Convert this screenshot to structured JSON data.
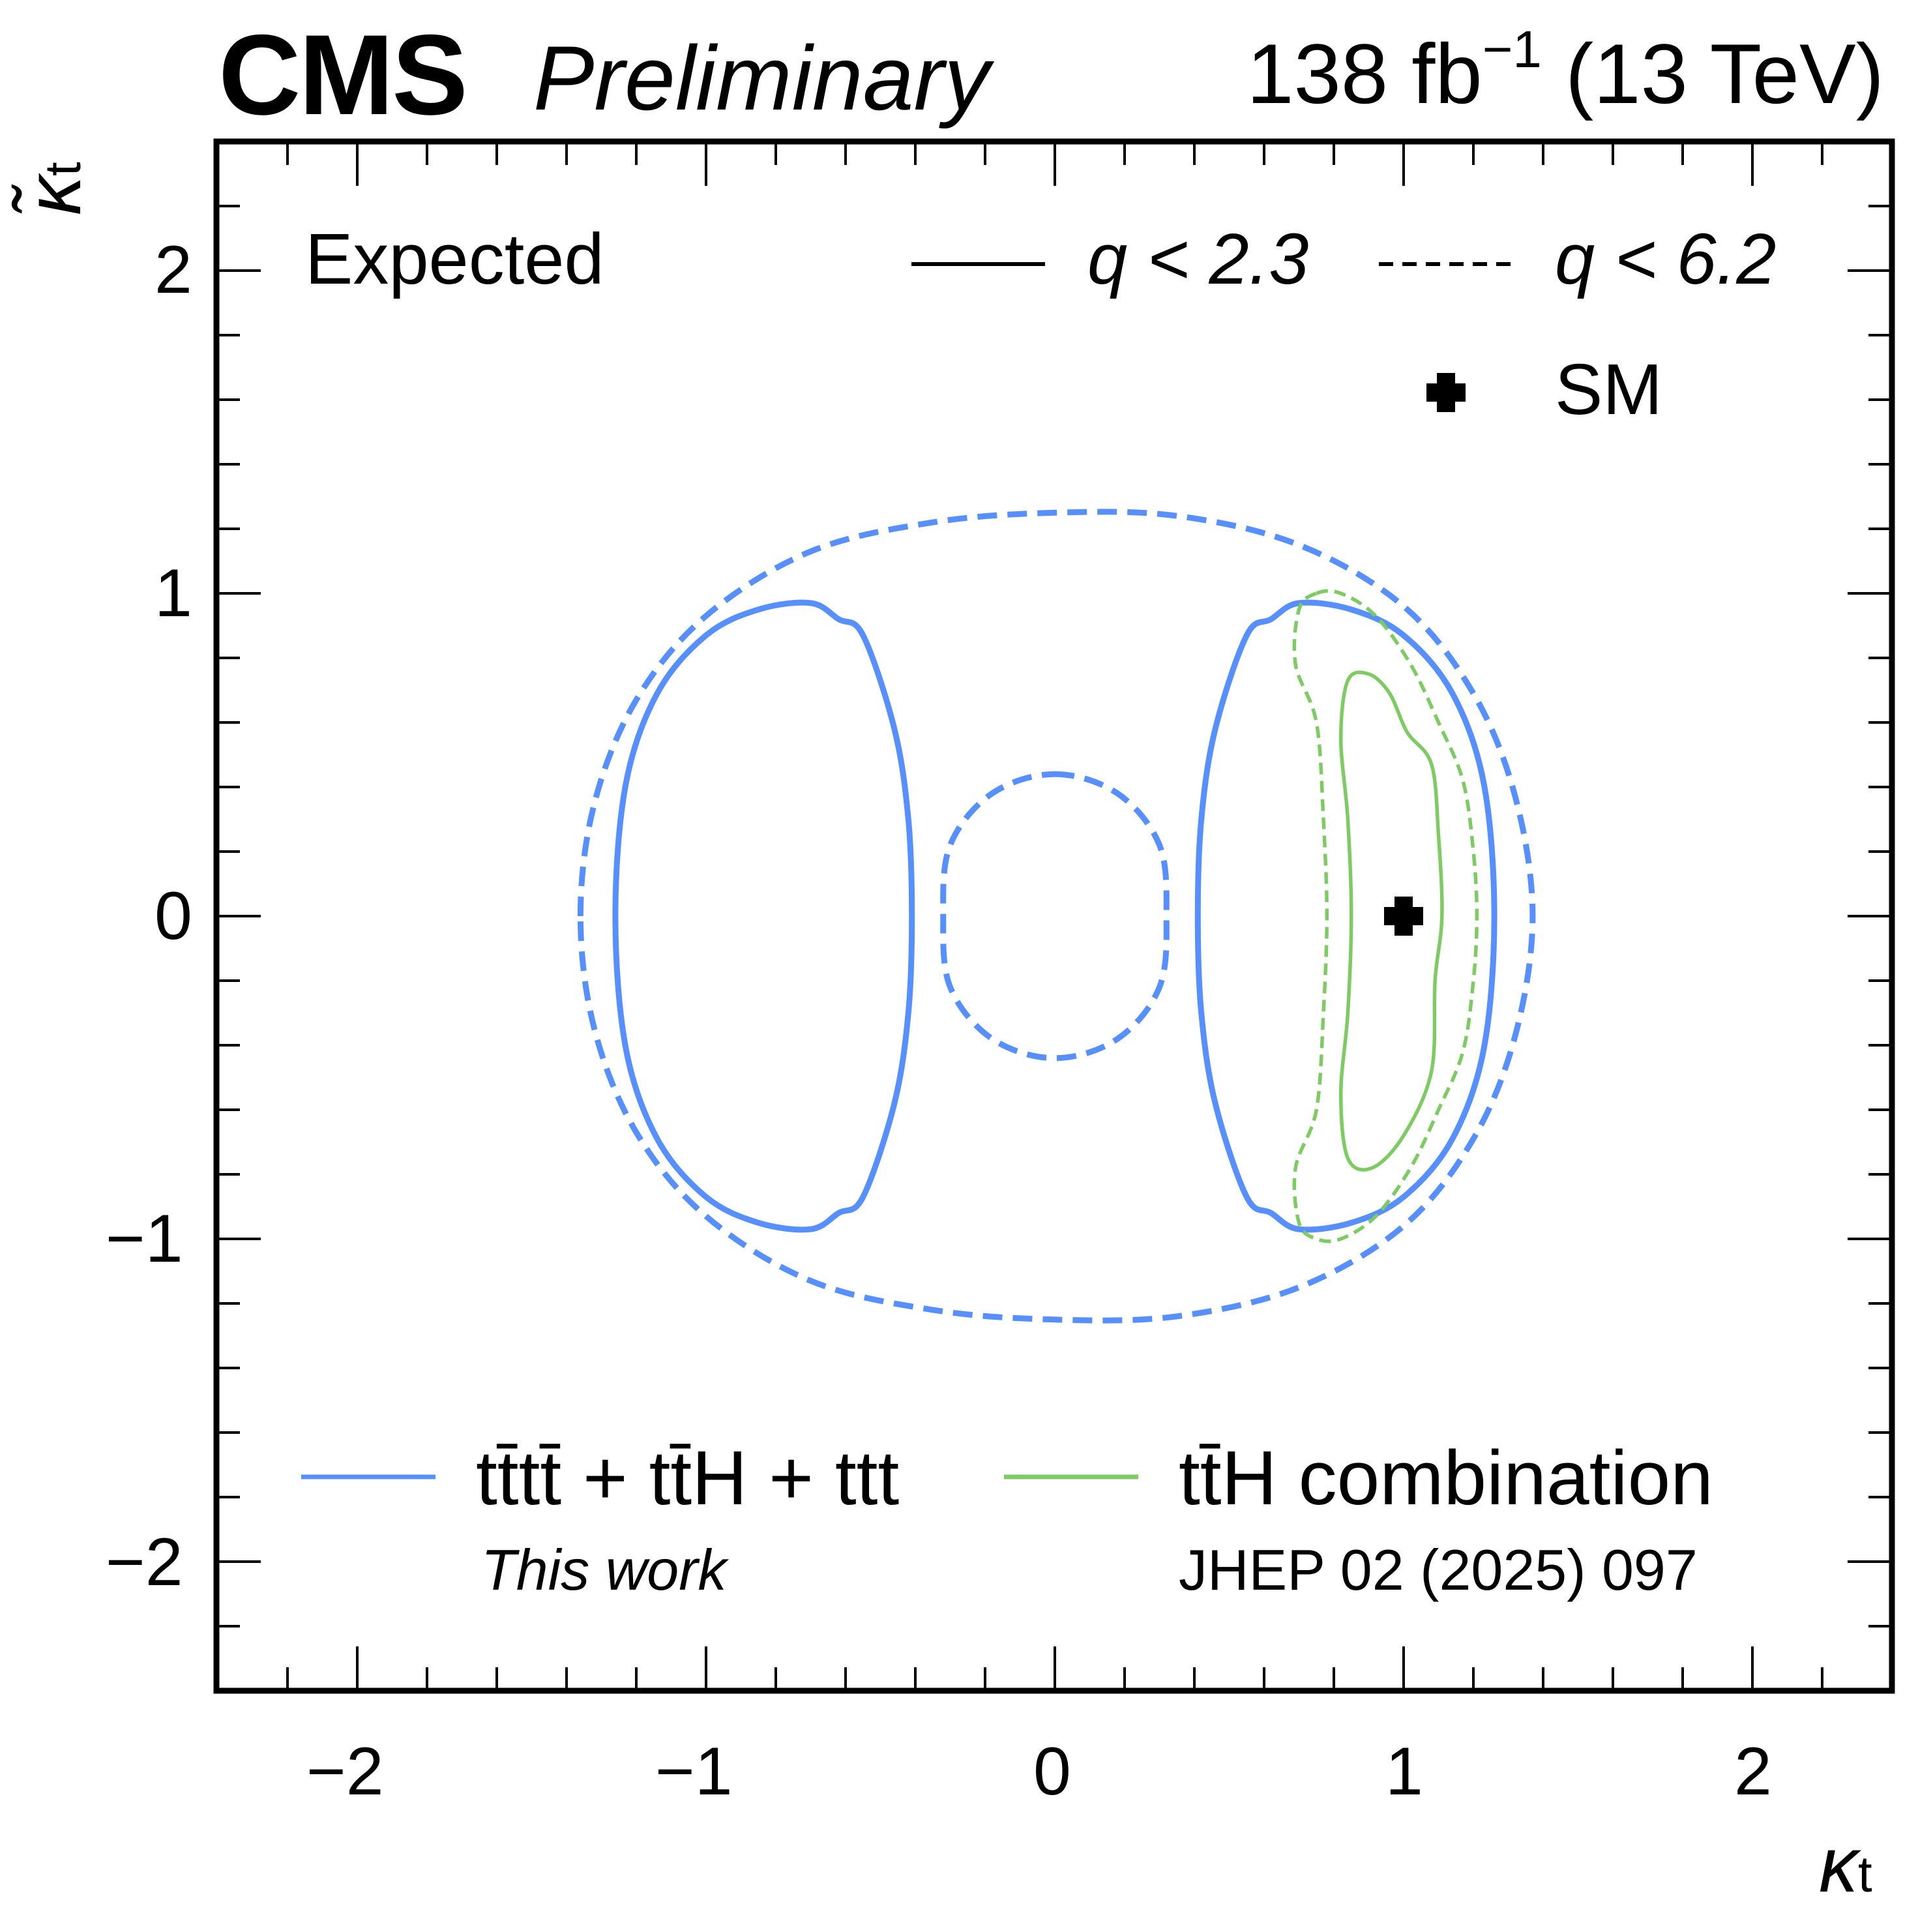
{
  "header": {
    "experiment": "CMS",
    "status": "Preliminary",
    "luminosity": "138 fb",
    "luminosity_exp": "−1",
    "energy": "(13 TeV)"
  },
  "chart_data": {
    "type": "contour",
    "xlabel": "κ",
    "xlabel_sub": "t",
    "ylabel": "κ̃",
    "ylabel_sub": "t",
    "xlim": [
      -2.4,
      2.4
    ],
    "ylim": [
      -2.4,
      2.4
    ],
    "x_ticks": [
      -2,
      -1,
      0,
      1,
      2
    ],
    "y_ticks": [
      -2,
      -1,
      0,
      1,
      2
    ],
    "x_tick_labels": [
      "−2",
      "−1",
      "0",
      "1",
      "2"
    ],
    "y_tick_labels": [
      "−2",
      "−1",
      "0",
      "1",
      "2"
    ],
    "annotation": "Expected",
    "style_legend": [
      {
        "style": "solid",
        "label": "q < 2.3"
      },
      {
        "style": "dashed",
        "label": "q < 6.2"
      }
    ],
    "sm_point": {
      "label": "SM",
      "x": 1.0,
      "y": 0.0
    },
    "series": [
      {
        "name": "tt̄tt̄ + tt̄H + ttt",
        "subtitle": "This work",
        "color": "#5790fc",
        "contours": [
          {
            "level": "q < 2.3",
            "points": [
              [
                0.55,
                0.87
              ],
              [
                0.46,
                0.58
              ],
              [
                0.42,
                0.3
              ],
              [
                0.41,
                0.0
              ],
              [
                0.42,
                -0.3
              ],
              [
                0.46,
                -0.58
              ],
              [
                0.55,
                -0.87
              ],
              [
                0.62,
                -0.92
              ],
              [
                0.7,
                -0.97
              ],
              [
                0.85,
                -0.95
              ],
              [
                1.0,
                -0.87
              ],
              [
                1.14,
                -0.69
              ],
              [
                1.23,
                -0.41
              ],
              [
                1.26,
                0.0
              ],
              [
                1.23,
                0.41
              ],
              [
                1.14,
                0.69
              ],
              [
                1.0,
                0.87
              ],
              [
                0.85,
                0.95
              ],
              [
                0.7,
                0.97
              ],
              [
                0.62,
                0.92
              ]
            ]
          },
          {
            "level": "q < 2.3",
            "points": [
              [
                -0.55,
                0.87
              ],
              [
                -0.46,
                0.58
              ],
              [
                -0.42,
                0.3
              ],
              [
                -0.41,
                0.0
              ],
              [
                -0.42,
                -0.3
              ],
              [
                -0.46,
                -0.58
              ],
              [
                -0.55,
                -0.87
              ],
              [
                -0.62,
                -0.92
              ],
              [
                -0.7,
                -0.97
              ],
              [
                -0.85,
                -0.95
              ],
              [
                -1.0,
                -0.87
              ],
              [
                -1.14,
                -0.69
              ],
              [
                -1.23,
                -0.41
              ],
              [
                -1.26,
                0.0
              ],
              [
                -1.23,
                0.41
              ],
              [
                -1.14,
                0.69
              ],
              [
                -1.0,
                0.87
              ],
              [
                -0.85,
                0.95
              ],
              [
                -0.7,
                0.97
              ],
              [
                -0.62,
                0.92
              ]
            ]
          },
          {
            "level": "q < 6.2",
            "points": [
              [
                -1.36,
                0.0
              ],
              [
                -1.32,
                0.35
              ],
              [
                -1.2,
                0.67
              ],
              [
                -1.0,
                0.93
              ],
              [
                -0.7,
                1.13
              ],
              [
                -0.35,
                1.22
              ],
              [
                0.0,
                1.25
              ],
              [
                0.35,
                1.24
              ],
              [
                0.7,
                1.15
              ],
              [
                1.0,
                0.96
              ],
              [
                1.2,
                0.69
              ],
              [
                1.32,
                0.37
              ],
              [
                1.37,
                0.0
              ],
              [
                1.32,
                -0.37
              ],
              [
                1.2,
                -0.69
              ],
              [
                1.0,
                -0.96
              ],
              [
                0.7,
                -1.15
              ],
              [
                0.35,
                -1.24
              ],
              [
                0.0,
                -1.25
              ],
              [
                -0.35,
                -1.22
              ],
              [
                -0.7,
                -1.13
              ],
              [
                -1.0,
                -0.93
              ],
              [
                -1.2,
                -0.67
              ],
              [
                -1.32,
                -0.35
              ]
            ]
          },
          {
            "level": "q < 6.2",
            "points": [
              [
                0.0,
                0.44
              ],
              [
                0.18,
                0.38
              ],
              [
                0.3,
                0.22
              ],
              [
                0.32,
                0.0
              ],
              [
                0.3,
                -0.22
              ],
              [
                0.18,
                -0.38
              ],
              [
                0.0,
                -0.44
              ],
              [
                -0.18,
                -0.38
              ],
              [
                -0.3,
                -0.22
              ],
              [
                -0.32,
                0.0
              ],
              [
                -0.3,
                0.22
              ],
              [
                -0.18,
                0.38
              ]
            ]
          }
        ]
      },
      {
        "name": "tt̄H combination",
        "subtitle": "JHEP 02 (2025) 097",
        "color": "#7ecb63",
        "contours": [
          {
            "level": "q < 2.3",
            "points": [
              [
                0.84,
                0.73
              ],
              [
                0.9,
                0.75
              ],
              [
                0.96,
                0.69
              ],
              [
                1.01,
                0.57
              ],
              [
                1.08,
                0.47
              ],
              [
                1.1,
                0.25
              ],
              [
                1.11,
                0.0
              ],
              [
                1.09,
                -0.2
              ],
              [
                1.08,
                -0.48
              ],
              [
                1.0,
                -0.68
              ],
              [
                0.91,
                -0.78
              ],
              [
                0.84,
                -0.75
              ],
              [
                0.82,
                -0.55
              ],
              [
                0.84,
                -0.3
              ],
              [
                0.85,
                0.0
              ],
              [
                0.84,
                0.3
              ],
              [
                0.82,
                0.55
              ]
            ]
          },
          {
            "level": "q < 6.2",
            "points": [
              [
                0.75,
                1.0
              ],
              [
                0.82,
                1.0
              ],
              [
                0.92,
                0.93
              ],
              [
                1.02,
                0.78
              ],
              [
                1.1,
                0.6
              ],
              [
                1.17,
                0.42
              ],
              [
                1.2,
                0.2
              ],
              [
                1.21,
                0.0
              ],
              [
                1.2,
                -0.2
              ],
              [
                1.17,
                -0.42
              ],
              [
                1.1,
                -0.6
              ],
              [
                1.02,
                -0.78
              ],
              [
                0.92,
                -0.93
              ],
              [
                0.82,
                -1.0
              ],
              [
                0.75,
                -1.0
              ],
              [
                0.7,
                -0.95
              ],
              [
                0.69,
                -0.78
              ],
              [
                0.75,
                -0.6
              ],
              [
                0.77,
                -0.3
              ],
              [
                0.78,
                0.0
              ],
              [
                0.77,
                0.3
              ],
              [
                0.75,
                0.6
              ],
              [
                0.69,
                0.78
              ],
              [
                0.7,
                0.95
              ]
            ]
          }
        ]
      }
    ]
  }
}
